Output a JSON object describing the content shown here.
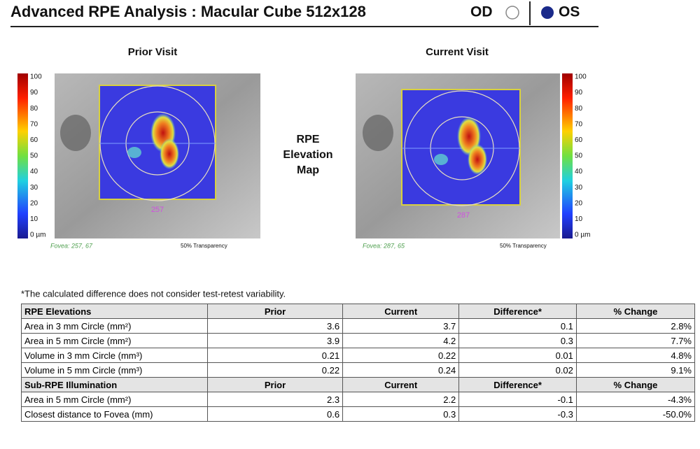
{
  "header": {
    "title": "Advanced RPE Analysis : Macular Cube 512x128",
    "od": "OD",
    "os": "OS"
  },
  "map_label": [
    "RPE",
    "Elevation",
    "Map"
  ],
  "scale": [
    "100",
    "90",
    "80",
    "70",
    "60",
    "50",
    "40",
    "30",
    "20",
    "10",
    "0 µm"
  ],
  "prior": {
    "title": "Prior Visit",
    "slice": "257",
    "fovea": "Fovea: 257, 67",
    "transparency": "50% Transparency"
  },
  "current": {
    "title": "Current Visit",
    "slice": "287",
    "fovea": "Fovea: 287, 65",
    "transparency": "50% Transparency"
  },
  "note": "*The calculated difference does not consider test-retest variability.",
  "table": {
    "sections": [
      {
        "header": [
          "RPE Elevations",
          "Prior",
          "Current",
          "Difference*",
          "% Change"
        ],
        "rows": [
          [
            "Area in 3 mm Circle (mm²)",
            "3.6",
            "3.7",
            "0.1",
            "2.8%"
          ],
          [
            "Area in 5 mm Circle (mm²)",
            "3.9",
            "4.2",
            "0.3",
            "7.7%"
          ],
          [
            "Volume in 3 mm Circle (mm³)",
            "0.21",
            "0.22",
            "0.01",
            "4.8%"
          ],
          [
            "Volume in 5 mm Circle (mm³)",
            "0.22",
            "0.24",
            "0.02",
            "9.1%"
          ]
        ]
      },
      {
        "header": [
          "Sub-RPE Illumination",
          "Prior",
          "Current",
          "Difference*",
          "% Change"
        ],
        "rows": [
          [
            "Area in 5 mm Circle (mm²)",
            "2.3",
            "2.2",
            "-0.1",
            "-4.3%"
          ],
          [
            "Closest distance to Fovea (mm)",
            "0.6",
            "0.3",
            "-0.3",
            "-50.0%"
          ]
        ]
      }
    ]
  }
}
